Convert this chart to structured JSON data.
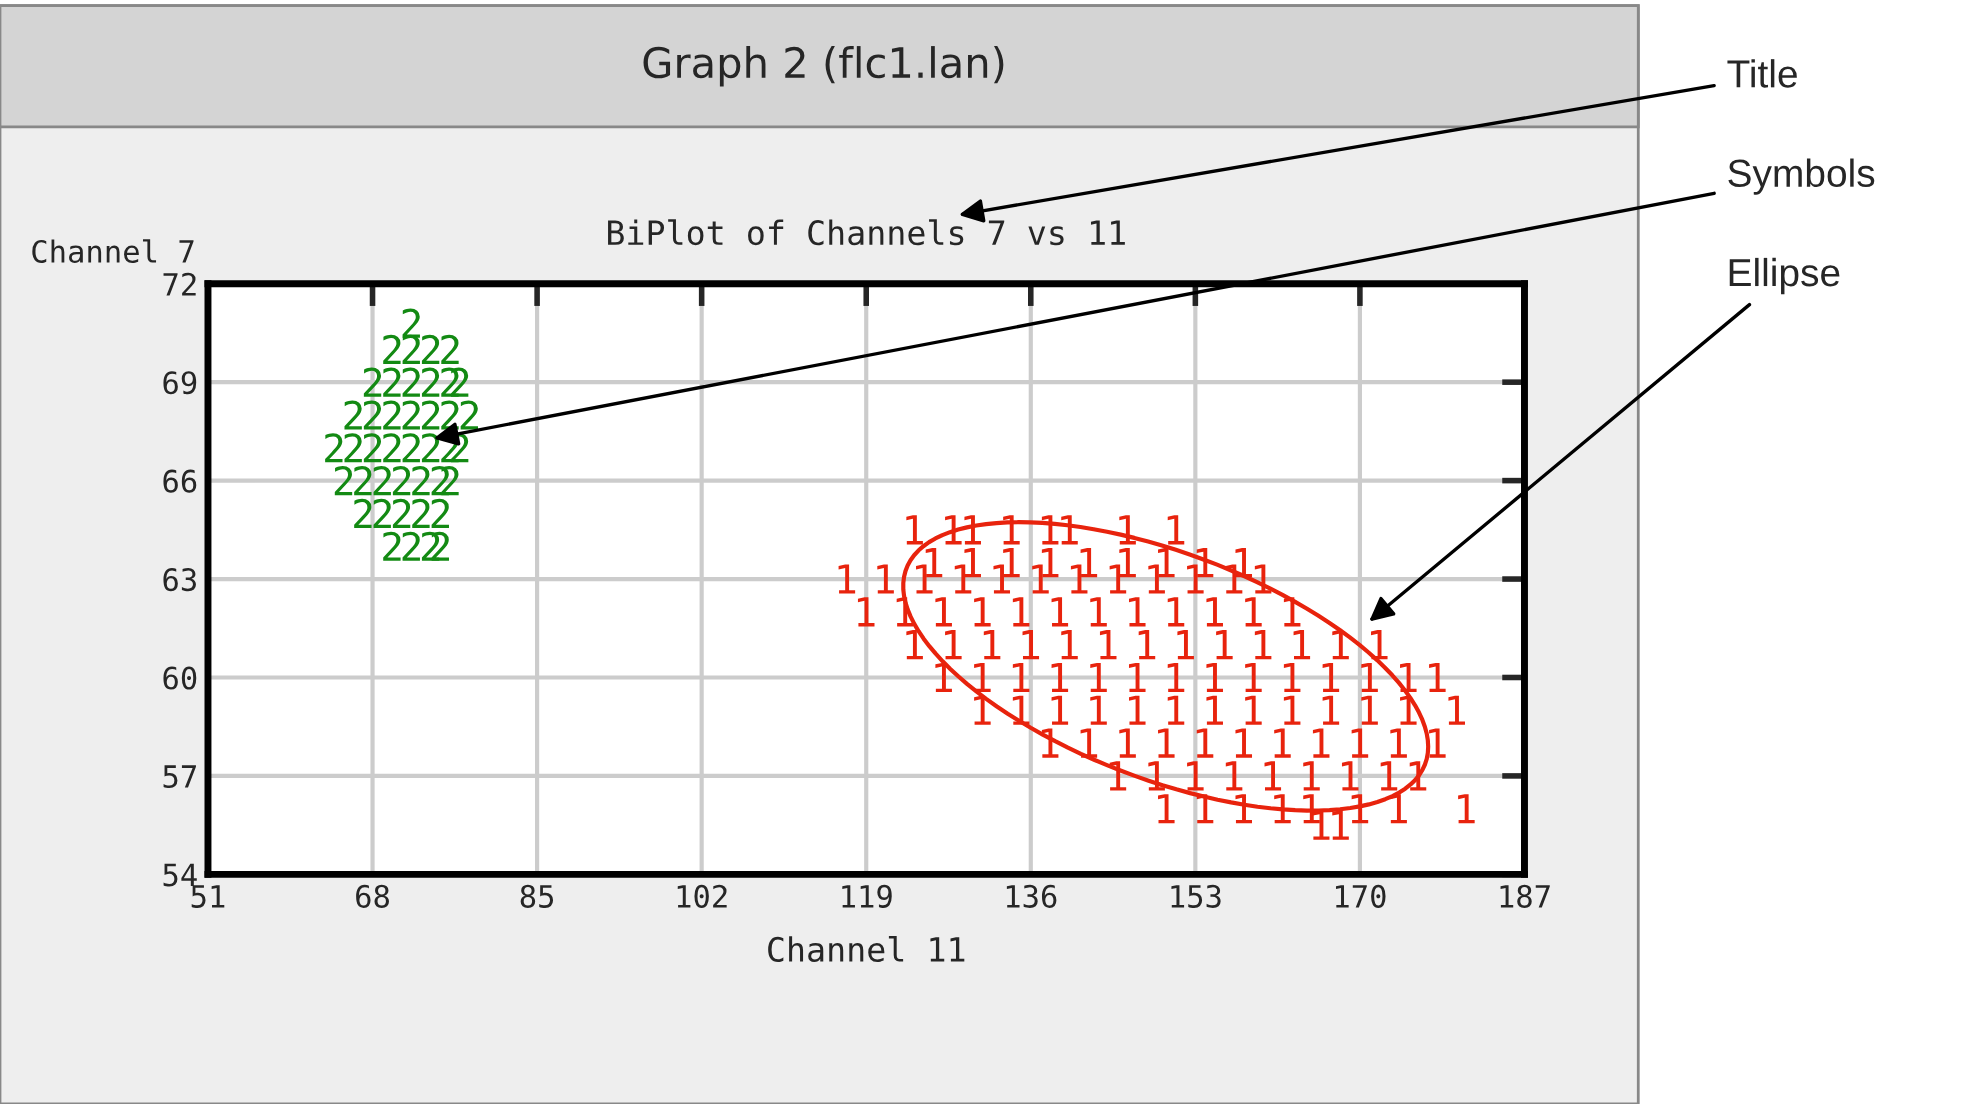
{
  "chart_data": {
    "type": "scatter",
    "title": "BiPlot of Channels 7 vs 11",
    "xlabel": "Channel 11",
    "ylabel": "Channel 7",
    "xlim": [
      51,
      187
    ],
    "xticks": [
      51,
      68,
      85,
      102,
      119,
      136,
      153,
      170,
      187
    ],
    "ylim": [
      54,
      72
    ],
    "yticks": [
      54,
      57,
      60,
      63,
      66,
      69,
      72
    ],
    "grid": true,
    "series": [
      {
        "color": "#138a13",
        "x": [
          72,
          70,
          72,
          74,
          76,
          68,
          70,
          72,
          74,
          76,
          77,
          66,
          68,
          70,
          72,
          74,
          76,
          78,
          64,
          66,
          68,
          70,
          72,
          74,
          76,
          77,
          65,
          67,
          69,
          71,
          73,
          75,
          76,
          67,
          69,
          71,
          73,
          75,
          70,
          72,
          74,
          75
        ],
        "values": [
          70.8,
          70,
          70,
          70,
          70,
          69,
          69,
          69,
          69,
          69,
          69,
          68,
          68,
          68,
          68,
          68,
          68,
          68,
          67,
          67,
          67,
          67,
          67,
          67,
          67,
          67,
          66,
          66,
          66,
          66,
          66,
          66,
          66,
          65,
          65,
          65,
          65,
          65,
          64,
          64,
          64,
          64
        ]
      },
      {
        "color": "#e8230d",
        "x": [
          124,
          128,
          130,
          134,
          138,
          140,
          146,
          151,
          126,
          130,
          134,
          138,
          142,
          146,
          150,
          154,
          158,
          117,
          121,
          125,
          129,
          133,
          137,
          141,
          145,
          149,
          153,
          157,
          160,
          119,
          123,
          127,
          131,
          135,
          139,
          143,
          147,
          151,
          155,
          159,
          163,
          124,
          128,
          132,
          136,
          140,
          144,
          148,
          152,
          156,
          160,
          164,
          168,
          172,
          127,
          131,
          135,
          139,
          143,
          147,
          151,
          155,
          159,
          163,
          167,
          171,
          175,
          178,
          131,
          135,
          139,
          143,
          147,
          151,
          155,
          159,
          163,
          167,
          171,
          175,
          180,
          138,
          142,
          146,
          150,
          154,
          158,
          162,
          166,
          170,
          174,
          178,
          145,
          149,
          153,
          157,
          161,
          165,
          169,
          173,
          176,
          150,
          154,
          158,
          162,
          165,
          170,
          174,
          181,
          166,
          168
        ],
        "values": [
          64.5,
          64.5,
          64.5,
          64.5,
          64.5,
          64.5,
          64.5,
          64.5,
          63.5,
          63.5,
          63.5,
          63.5,
          63.5,
          63.5,
          63.5,
          63.5,
          63.5,
          63,
          63,
          63,
          63,
          63,
          63,
          63,
          63,
          63,
          63,
          63,
          63,
          62,
          62,
          62,
          62,
          62,
          62,
          62,
          62,
          62,
          62,
          62,
          62,
          61,
          61,
          61,
          61,
          61,
          61,
          61,
          61,
          61,
          61,
          61,
          61,
          61,
          60,
          60,
          60,
          60,
          60,
          60,
          60,
          60,
          60,
          60,
          60,
          60,
          60,
          60,
          59,
          59,
          59,
          59,
          59,
          59,
          59,
          59,
          59,
          59,
          59,
          59,
          59,
          58,
          58,
          58,
          58,
          58,
          58,
          58,
          58,
          58,
          58,
          58,
          57,
          57,
          57,
          57,
          57,
          57,
          57,
          57,
          57,
          56,
          56,
          56,
          56,
          56,
          56,
          56,
          56,
          55.5,
          55.5
        ]
      }
    ],
    "annotations": [
      "Graph 2 (flc1.lan)",
      "Title",
      "Symbols",
      "Ellipse"
    ]
  }
}
